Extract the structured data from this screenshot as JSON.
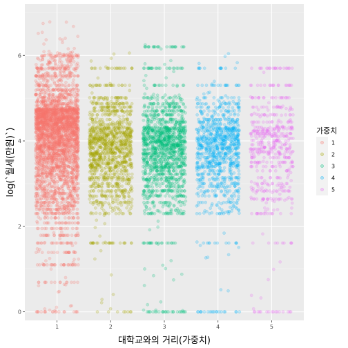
{
  "chart_data": {
    "type": "scatter",
    "style": "jitter",
    "xlabel": "대학교와의 거리(가중치)",
    "ylabel": "log(`월세(만원)`)",
    "categories": [
      "1",
      "2",
      "3",
      "4",
      "5"
    ],
    "xlim": [
      0.4,
      5.6
    ],
    "ylim": [
      -0.2,
      7.2
    ],
    "y_ticks": [
      0,
      2,
      4,
      6
    ],
    "grid": true,
    "legend": {
      "title": "가중치",
      "placement": "right",
      "entries": [
        "1",
        "2",
        "3",
        "4",
        "5"
      ]
    },
    "colors": [
      "#F8766D",
      "#A3A500",
      "#00BF7D",
      "#00B0F6",
      "#E76BF3"
    ],
    "series": [
      {
        "x": 1,
        "y_range": [
          0,
          6.8
        ],
        "dense_range": [
          2.3,
          6.1
        ],
        "approx_count": 3500,
        "values": [
          0,
          0.69,
          1.1,
          1.39,
          1.61,
          1.79,
          1.95,
          2.08,
          2.2,
          2.3,
          2.4,
          2.48,
          2.56,
          2.64,
          2.71,
          2.77,
          2.83,
          2.89,
          2.94,
          3.0,
          3.04,
          3.09,
          3.14,
          3.18,
          3.22,
          3.26,
          3.3,
          3.33,
          3.37,
          3.4,
          3.43,
          3.47,
          3.5,
          3.53,
          3.56,
          3.58,
          3.61,
          3.64,
          3.66,
          3.69,
          3.71,
          3.74,
          3.76,
          3.78,
          3.81,
          3.83,
          3.85,
          3.87,
          3.89,
          3.91,
          3.93,
          3.95,
          3.97,
          3.99,
          4.01,
          4.03,
          4.04,
          4.06,
          4.08,
          4.09,
          4.11,
          4.13,
          4.14,
          4.16,
          4.17,
          4.19,
          4.2,
          4.22,
          4.23,
          4.25,
          4.26,
          4.28,
          4.29,
          4.3,
          4.32,
          4.33,
          4.34,
          4.36,
          4.37,
          4.38,
          4.39,
          4.41,
          4.42,
          4.43,
          4.44,
          4.45,
          4.47,
          4.48,
          4.49,
          4.5,
          4.51,
          4.52,
          4.53,
          4.54,
          4.55,
          4.56,
          4.57,
          4.58,
          4.6,
          4.61,
          4.62,
          4.63,
          4.64,
          4.65,
          4.66,
          4.67,
          4.68,
          4.69,
          4.7,
          4.71,
          4.72,
          4.73,
          4.74,
          4.75,
          4.76,
          4.79,
          4.83,
          4.87,
          4.91,
          4.94,
          5.01,
          5.08,
          5.19,
          5.3,
          5.52,
          5.7,
          5.99
        ]
      },
      {
        "x": 2,
        "y_range": [
          0,
          6.2
        ],
        "dense_range": [
          2.3,
          5.0
        ],
        "approx_count": 1300,
        "values": [
          0,
          1.61,
          2.3,
          2.56,
          2.71,
          2.83,
          2.94,
          3.0,
          3.09,
          3.14,
          3.22,
          3.3,
          3.37,
          3.4,
          3.43,
          3.47,
          3.5,
          3.56,
          3.61,
          3.64,
          3.69,
          3.71,
          3.74,
          3.78,
          3.81,
          3.83,
          3.85,
          3.89,
          3.91,
          3.93,
          3.97,
          3.99,
          4.01,
          4.04,
          4.06,
          4.09,
          4.11,
          4.14,
          4.17,
          4.2,
          4.23,
          4.25,
          4.28,
          4.3,
          4.32,
          4.38,
          4.44,
          4.5,
          4.61,
          4.7,
          4.79,
          4.87,
          5.01,
          5.3,
          5.7
        ]
      },
      {
        "x": 3,
        "y_range": [
          0,
          6.3
        ],
        "dense_range": [
          2.3,
          5.1
        ],
        "approx_count": 1500,
        "values": [
          0,
          1.61,
          2.3,
          2.56,
          2.71,
          2.83,
          2.94,
          3.0,
          3.09,
          3.14,
          3.22,
          3.3,
          3.37,
          3.4,
          3.43,
          3.47,
          3.5,
          3.56,
          3.61,
          3.64,
          3.69,
          3.71,
          3.74,
          3.78,
          3.81,
          3.83,
          3.85,
          3.89,
          3.91,
          3.93,
          3.97,
          3.99,
          4.01,
          4.04,
          4.06,
          4.09,
          4.11,
          4.14,
          4.17,
          4.2,
          4.23,
          4.25,
          4.28,
          4.3,
          4.32,
          4.38,
          4.44,
          4.5,
          4.61,
          4.7,
          4.79,
          4.87,
          5.01,
          5.3,
          5.7,
          6.2
        ]
      },
      {
        "x": 4,
        "y_range": [
          0,
          6.1
        ],
        "dense_range": [
          2.3,
          5.0
        ],
        "approx_count": 1000,
        "values": [
          0,
          1.61,
          2.3,
          2.56,
          2.71,
          2.83,
          2.94,
          3.0,
          3.09,
          3.14,
          3.22,
          3.3,
          3.37,
          3.4,
          3.43,
          3.47,
          3.5,
          3.56,
          3.61,
          3.64,
          3.69,
          3.71,
          3.74,
          3.78,
          3.81,
          3.83,
          3.85,
          3.89,
          3.91,
          3.93,
          3.97,
          3.99,
          4.01,
          4.04,
          4.06,
          4.09,
          4.11,
          4.14,
          4.17,
          4.2,
          4.23,
          4.25,
          4.28,
          4.3,
          4.32,
          4.38,
          4.44,
          4.5,
          4.61,
          4.7,
          4.79,
          4.87,
          5.01,
          5.3,
          5.7
        ]
      },
      {
        "x": 5,
        "y_range": [
          0,
          6.0
        ],
        "dense_range": [
          2.3,
          4.9
        ],
        "approx_count": 550,
        "values": [
          0,
          1.61,
          2.3,
          2.64,
          2.83,
          3.0,
          3.14,
          3.3,
          3.4,
          3.5,
          3.61,
          3.69,
          3.74,
          3.81,
          3.85,
          3.91,
          3.97,
          4.01,
          4.06,
          4.11,
          4.17,
          4.23,
          4.28,
          4.32,
          4.44,
          4.61,
          4.79,
          5.01,
          5.3,
          5.7
        ]
      }
    ]
  }
}
